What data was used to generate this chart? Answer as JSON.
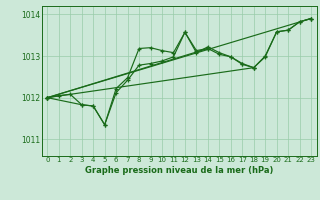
{
  "background_color": "#cce8d8",
  "grid_color": "#99ccaa",
  "line_color": "#1a6b1a",
  "title": "Graphe pression niveau de la mer (hPa)",
  "xlim": [
    -0.5,
    23.5
  ],
  "ylim": [
    1010.6,
    1014.2
  ],
  "yticks": [
    1011,
    1012,
    1013,
    1014
  ],
  "xticks": [
    0,
    1,
    2,
    3,
    4,
    5,
    6,
    7,
    8,
    9,
    10,
    11,
    12,
    13,
    14,
    15,
    16,
    17,
    18,
    19,
    20,
    21,
    22,
    23
  ],
  "line1_x": [
    0,
    1,
    2,
    3,
    4,
    5,
    6,
    7,
    8,
    9,
    10,
    11,
    12,
    13,
    14,
    15,
    16,
    17,
    18,
    19,
    20,
    21,
    22,
    23
  ],
  "line1_y": [
    1012.0,
    1012.05,
    1012.08,
    1011.83,
    1011.8,
    1011.35,
    1012.22,
    1012.48,
    1013.18,
    1013.2,
    1013.13,
    1013.08,
    1013.57,
    1013.13,
    1013.18,
    1013.04,
    1012.98,
    1012.8,
    1012.72,
    1012.98,
    1013.58,
    1013.62,
    1013.82,
    1013.9
  ],
  "line2_x": [
    0,
    3,
    4,
    5,
    6,
    7,
    8,
    9,
    10,
    11,
    12,
    13,
    14,
    15,
    16,
    17,
    18,
    19,
    20,
    21,
    22,
    23
  ],
  "line2_y": [
    1012.0,
    1011.83,
    1011.8,
    1011.35,
    1012.12,
    1012.42,
    1012.78,
    1012.82,
    1012.88,
    1012.98,
    1013.57,
    1013.08,
    1013.22,
    1013.08,
    1012.98,
    1012.82,
    1012.72,
    1013.0,
    1013.58,
    1013.62,
    1013.82,
    1013.9
  ],
  "trend1_x": [
    0,
    23
  ],
  "trend1_y": [
    1012.0,
    1013.9
  ],
  "trend2_x": [
    0,
    18
  ],
  "trend2_y": [
    1012.0,
    1012.72
  ],
  "trend3_x": [
    0,
    14
  ],
  "trend3_y": [
    1012.0,
    1013.18
  ]
}
